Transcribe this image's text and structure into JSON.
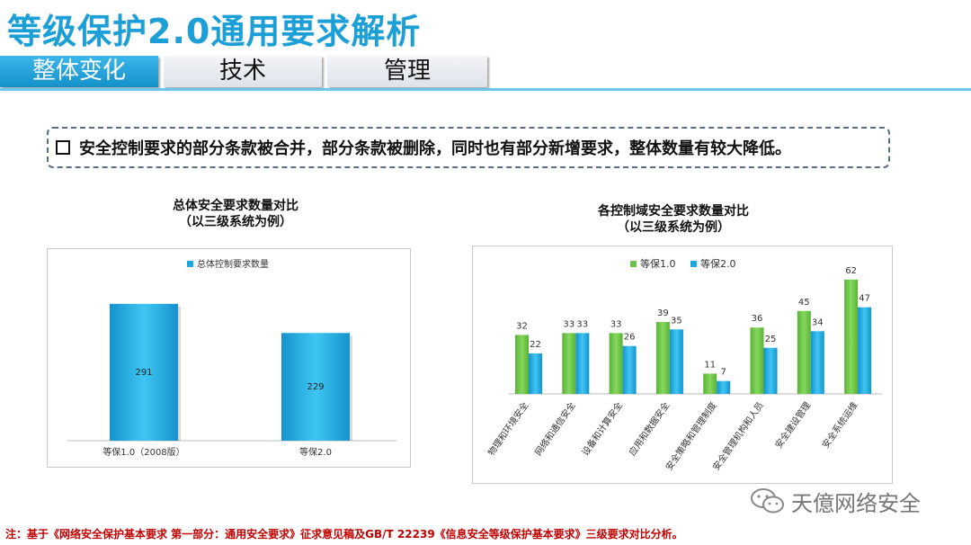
{
  "title": "等级保护2.0通用要求解析",
  "tabs": [
    {
      "label": "整体变化",
      "active": true
    },
    {
      "label": "技术",
      "active": false
    },
    {
      "label": "管理",
      "active": false
    }
  ],
  "callout": "安全控制要求的部分条款被合并，部分条款被删除，同时也有部分新增要求，整体数量有较大降低。",
  "chart_data": [
    {
      "type": "bar",
      "title": "总体安全要求数量对比",
      "subtitle": "（以三级系统为例）",
      "legend": "总体控制要求数量",
      "categories": [
        "等保1.0（2008版）",
        "等保2.0"
      ],
      "values": [
        291,
        229
      ],
      "ylim": [
        0,
        350
      ],
      "grid": false,
      "color": "#1ea6e0"
    },
    {
      "type": "bar",
      "title": "各控制域安全要求数量对比",
      "subtitle": "（以三级系统为例）",
      "legend_position": "top",
      "categories": [
        "物理和环境安全",
        "网络和通信安全",
        "设备和计算安全",
        "应用和数据安全",
        "安全策略和管理制度",
        "安全管理机构和人员",
        "安全建设管理",
        "安全系统运维"
      ],
      "series": [
        {
          "name": "等保1.0",
          "values": [
            32,
            33,
            33,
            39,
            11,
            36,
            45,
            62
          ],
          "color": "#6cc24a"
        },
        {
          "name": "等保2.0",
          "values": [
            22,
            33,
            26,
            35,
            7,
            25,
            34,
            47
          ],
          "color": "#1ea6e0"
        }
      ],
      "ylim": [
        0,
        70
      ],
      "grid": false
    }
  ],
  "footnote": "注：基于《网络安全保护基本要求 第一部分：通用安全要求》征求意见稿及GB/T 22239《信息安全等级保护基本要求》三级要求对比分析。",
  "watermark": "天億网络安全"
}
